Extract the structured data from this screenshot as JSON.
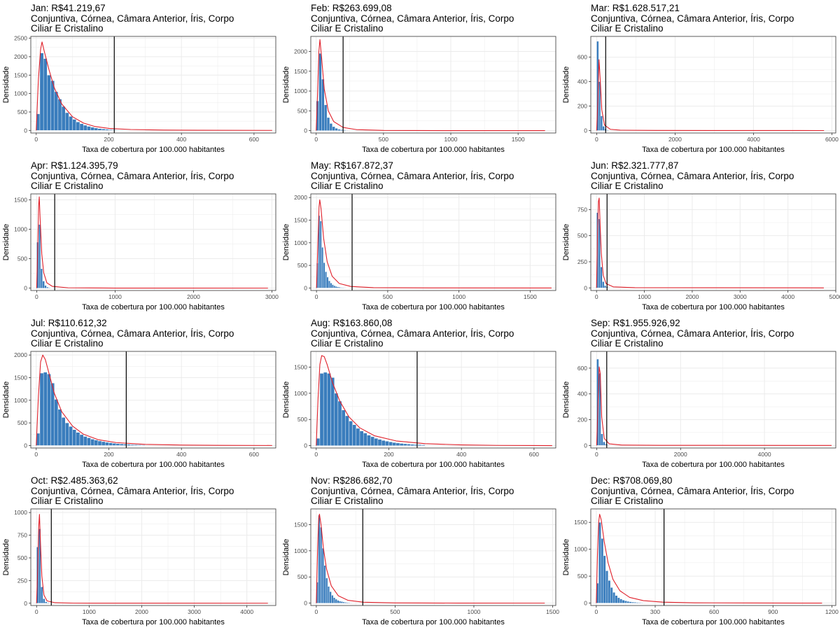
{
  "figure": {
    "subtitle_line1": "Conjuntiva, Córnea, Câmara Anterior, Íris, Corpo",
    "subtitle_line2": "Ciliar E Cristalino",
    "xlabel": "Taxa de cobertura por 100.000 habitantes",
    "ylabel": "Densidade",
    "colors": {
      "bar": "#3a7dbd",
      "bar_edge": "#ffffff",
      "density": "#e0202a",
      "reference_line": "#000000",
      "grid": "#ebebeb",
      "panel_border": "#333333"
    }
  },
  "chart_data": [
    {
      "type": "bar",
      "title": "Jan: R$41.219,67",
      "xlabel": "Taxa de cobertura por 100.000 habitantes",
      "ylabel": "Densidade",
      "xlim": [
        -15,
        660
      ],
      "ylim": [
        -70,
        2550
      ],
      "xticks": [
        0,
        200,
        400,
        600
      ],
      "yticks": [
        0,
        500,
        1000,
        1500,
        2000,
        2500
      ],
      "bin_width": 10,
      "bin_start": 0,
      "values": [
        450,
        2100,
        1950,
        1500,
        1350,
        1050,
        850,
        650,
        480,
        380,
        300,
        230,
        180,
        140,
        110,
        85,
        65,
        50,
        40,
        30,
        22,
        16,
        12,
        10,
        8,
        7,
        6,
        5,
        4,
        4
      ],
      "density": [
        [
          0,
          0
        ],
        [
          6,
          1400
        ],
        [
          12,
          2200
        ],
        [
          16,
          2400
        ],
        [
          22,
          2150
        ],
        [
          35,
          1650
        ],
        [
          50,
          1150
        ],
        [
          70,
          720
        ],
        [
          100,
          370
        ],
        [
          130,
          200
        ],
        [
          160,
          110
        ],
        [
          200,
          55
        ],
        [
          260,
          25
        ],
        [
          350,
          10
        ],
        [
          450,
          4
        ],
        [
          650,
          1
        ]
      ],
      "reference_line": 215
    },
    {
      "type": "bar",
      "title": "Feb: R$263.699,08",
      "xlabel": "Taxa de cobertura por 100.000 habitantes",
      "ylabel": "Densidade",
      "xlim": [
        -40,
        1780
      ],
      "ylim": [
        -60,
        2380
      ],
      "xticks": [
        0,
        500,
        1000,
        1500
      ],
      "yticks": [
        0,
        500,
        1000,
        1500,
        2000
      ],
      "bin_width": 20,
      "bin_start": 0,
      "values": [
        750,
        1950,
        1300,
        650,
        330,
        180,
        100,
        60,
        35,
        22,
        14,
        9,
        6,
        4,
        3
      ],
      "density": [
        [
          0,
          0
        ],
        [
          10,
          900
        ],
        [
          20,
          2000
        ],
        [
          28,
          2300
        ],
        [
          40,
          1850
        ],
        [
          60,
          1050
        ],
        [
          90,
          500
        ],
        [
          130,
          230
        ],
        [
          200,
          80
        ],
        [
          300,
          25
        ],
        [
          500,
          6
        ],
        [
          1000,
          1
        ],
        [
          1700,
          0
        ]
      ],
      "reference_line": 200
    },
    {
      "type": "bar",
      "title": "Mar: R$1.628.517,21",
      "xlabel": "Taxa de cobertura por 100.000 habitantes",
      "ylabel": "Densidade",
      "xlim": [
        -150,
        6100
      ],
      "ylim": [
        -20,
        770
      ],
      "xticks": [
        0,
        2000,
        4000,
        6000
      ],
      "yticks": [
        0,
        200,
        400,
        600
      ],
      "bin_width": 50,
      "bin_start": 0,
      "values": [
        730,
        400,
        120,
        35,
        12,
        5
      ],
      "density": [
        [
          0,
          0
        ],
        [
          30,
          250
        ],
        [
          60,
          580
        ],
        [
          90,
          420
        ],
        [
          130,
          170
        ],
        [
          200,
          45
        ],
        [
          350,
          10
        ],
        [
          600,
          3
        ],
        [
          1500,
          1
        ],
        [
          5800,
          0
        ]
      ],
      "reference_line": 230
    },
    {
      "type": "bar",
      "title": "Apr: R$1.124.395,79",
      "xlabel": "Taxa de cobertura por 100.000 habitantes",
      "ylabel": "Densidade",
      "xlim": [
        -75,
        3050
      ],
      "ylim": [
        -40,
        1600
      ],
      "xticks": [
        0,
        1000,
        2000,
        3000
      ],
      "yticks": [
        0,
        500,
        1000,
        1500
      ],
      "bin_width": 25,
      "bin_start": 0,
      "values": [
        780,
        1080,
        330,
        120,
        45,
        18,
        8,
        4
      ],
      "density": [
        [
          0,
          0
        ],
        [
          12,
          600
        ],
        [
          25,
          1400
        ],
        [
          33,
          1550
        ],
        [
          45,
          1150
        ],
        [
          65,
          580
        ],
        [
          90,
          260
        ],
        [
          130,
          90
        ],
        [
          200,
          30
        ],
        [
          400,
          6
        ],
        [
          1000,
          1
        ],
        [
          2950,
          0
        ]
      ],
      "reference_line": 230
    },
    {
      "type": "bar",
      "title": "May: R$167.872,37",
      "xlabel": "Taxa de cobertura por 100.000 habitantes",
      "ylabel": "Densidade",
      "xlim": [
        -40,
        1680
      ],
      "ylim": [
        -55,
        2080
      ],
      "xticks": [
        0,
        500,
        1000,
        1500
      ],
      "yticks": [
        0,
        500,
        1000,
        1500,
        2000
      ],
      "bin_width": 12,
      "bin_start": 0,
      "values": [
        550,
        1600,
        1480,
        900,
        560,
        360,
        240,
        160,
        110,
        75,
        52,
        36,
        25,
        18,
        13,
        10,
        8,
        6,
        5,
        4
      ],
      "density": [
        [
          0,
          0
        ],
        [
          10,
          1000
        ],
        [
          18,
          1800
        ],
        [
          23,
          1950
        ],
        [
          32,
          1750
        ],
        [
          50,
          1100
        ],
        [
          75,
          580
        ],
        [
          110,
          260
        ],
        [
          160,
          100
        ],
        [
          240,
          35
        ],
        [
          400,
          8
        ],
        [
          800,
          2
        ],
        [
          1650,
          0
        ]
      ],
      "reference_line": 250
    },
    {
      "type": "bar",
      "title": "Jun: R$2.321.777,87",
      "xlabel": "Taxa de cobertura por 100.000 habitantes",
      "ylabel": "Densidade",
      "xlim": [
        -120,
        5000
      ],
      "ylim": [
        -25,
        900
      ],
      "xticks": [
        0,
        1000,
        2000,
        3000,
        4000,
        5000
      ],
      "yticks": [
        0,
        250,
        500,
        750
      ],
      "bin_width": 40,
      "bin_start": 0,
      "values": [
        720,
        660,
        200,
        60,
        22,
        9,
        4
      ],
      "density": [
        [
          0,
          0
        ],
        [
          20,
          500
        ],
        [
          40,
          830
        ],
        [
          55,
          860
        ],
        [
          75,
          600
        ],
        [
          100,
          330
        ],
        [
          140,
          120
        ],
        [
          200,
          40
        ],
        [
          350,
          10
        ],
        [
          800,
          2
        ],
        [
          4750,
          0
        ]
      ],
      "reference_line": 220
    },
    {
      "type": "bar",
      "title": "Jul: R$110.612,32",
      "xlabel": "Taxa de cobertura por 100.000 habitantes",
      "ylabel": "Densidade",
      "xlim": [
        -15,
        660
      ],
      "ylim": [
        -55,
        2080
      ],
      "xticks": [
        0,
        200,
        400,
        600
      ],
      "yticks": [
        0,
        500,
        1000,
        1500,
        2000
      ],
      "bin_width": 10,
      "bin_start": 0,
      "values": [
        270,
        1600,
        1620,
        1580,
        1380,
        1020,
        800,
        620,
        500,
        420,
        350,
        290,
        240,
        200,
        170,
        140,
        120,
        100,
        85,
        70,
        60,
        50,
        42,
        36,
        30,
        25,
        21,
        18,
        15,
        13
      ],
      "density": [
        [
          0,
          0
        ],
        [
          6,
          1100
        ],
        [
          12,
          1850
        ],
        [
          18,
          2000
        ],
        [
          25,
          1900
        ],
        [
          35,
          1600
        ],
        [
          50,
          1150
        ],
        [
          70,
          750
        ],
        [
          100,
          430
        ],
        [
          130,
          250
        ],
        [
          170,
          130
        ],
        [
          220,
          65
        ],
        [
          300,
          25
        ],
        [
          400,
          10
        ],
        [
          500,
          4
        ],
        [
          650,
          1
        ]
      ],
      "reference_line": 248
    },
    {
      "type": "bar",
      "title": "Aug: R$163.860,08",
      "xlabel": "Taxa de cobertura por 100.000 habitantes",
      "ylabel": "Densidade",
      "xlim": [
        -15,
        660
      ],
      "ylim": [
        -45,
        1800
      ],
      "xticks": [
        0,
        200,
        400,
        600
      ],
      "yticks": [
        0,
        500,
        1000,
        1500
      ],
      "bin_width": 10,
      "bin_start": 0,
      "values": [
        140,
        1380,
        1400,
        1380,
        1300,
        1000,
        850,
        680,
        570,
        470,
        400,
        330,
        280,
        240,
        200,
        170,
        140,
        120,
        100,
        85,
        72,
        60,
        50,
        42,
        36,
        30,
        25,
        21,
        18,
        15
      ],
      "density": [
        [
          0,
          0
        ],
        [
          5,
          900
        ],
        [
          10,
          1550
        ],
        [
          15,
          1720
        ],
        [
          22,
          1700
        ],
        [
          30,
          1550
        ],
        [
          45,
          1200
        ],
        [
          65,
          850
        ],
        [
          90,
          550
        ],
        [
          120,
          340
        ],
        [
          160,
          190
        ],
        [
          220,
          90
        ],
        [
          300,
          38
        ],
        [
          400,
          14
        ],
        [
          500,
          5
        ],
        [
          650,
          1
        ]
      ],
      "reference_line": 278
    },
    {
      "type": "bar",
      "title": "Sep: R$1.955.926,92",
      "xlabel": "Taxa de cobertura por 100.000 habitantes",
      "ylabel": "Densidade",
      "xlim": [
        -140,
        5700
      ],
      "ylim": [
        -20,
        730
      ],
      "xticks": [
        0,
        2000,
        4000
      ],
      "yticks": [
        0,
        200,
        400,
        600
      ],
      "bin_width": 50,
      "bin_start": 0,
      "values": [
        670,
        560,
        90,
        28,
        10,
        4
      ],
      "density": [
        [
          0,
          0
        ],
        [
          30,
          300
        ],
        [
          60,
          610
        ],
        [
          85,
          560
        ],
        [
          120,
          220
        ],
        [
          180,
          55
        ],
        [
          300,
          12
        ],
        [
          600,
          3
        ],
        [
          1500,
          1
        ],
        [
          5600,
          0
        ]
      ],
      "reference_line": 240
    },
    {
      "type": "bar",
      "title": "Oct: R$2.485.363,62",
      "xlabel": "Taxa de cobertura por 100.000 habitantes",
      "ylabel": "Densidade",
      "xlim": [
        -110,
        4550
      ],
      "ylim": [
        -25,
        1040
      ],
      "xticks": [
        0,
        1000,
        2000,
        3000,
        4000
      ],
      "yticks": [
        0,
        250,
        500,
        750,
        1000
      ],
      "bin_width": 40,
      "bin_start": 0,
      "values": [
        620,
        820,
        180,
        50,
        16,
        6
      ],
      "density": [
        [
          0,
          0
        ],
        [
          20,
          350
        ],
        [
          40,
          840
        ],
        [
          55,
          980
        ],
        [
          75,
          650
        ],
        [
          100,
          300
        ],
        [
          140,
          90
        ],
        [
          200,
          25
        ],
        [
          350,
          6
        ],
        [
          700,
          1
        ],
        [
          4400,
          0
        ]
      ],
      "reference_line": 280
    },
    {
      "type": "bar",
      "title": "Nov: R$286.682,70",
      "xlabel": "Taxa de cobertura por 100.000 habitantes",
      "ylabel": "Densidade",
      "xlim": [
        -35,
        1520
      ],
      "ylim": [
        -45,
        1800
      ],
      "xticks": [
        0,
        500,
        1000,
        1500
      ],
      "yticks": [
        0,
        500,
        1000,
        1500
      ],
      "bin_width": 12,
      "bin_start": 0,
      "values": [
        400,
        1680,
        1450,
        1050,
        720,
        480,
        320,
        220,
        150,
        105,
        75,
        54,
        40,
        30,
        22,
        16,
        12,
        9,
        7,
        5
      ],
      "density": [
        [
          0,
          0
        ],
        [
          8,
          1000
        ],
        [
          15,
          1620
        ],
        [
          20,
          1700
        ],
        [
          30,
          1500
        ],
        [
          45,
          1050
        ],
        [
          65,
          650
        ],
        [
          95,
          330
        ],
        [
          140,
          140
        ],
        [
          200,
          55
        ],
        [
          300,
          18
        ],
        [
          500,
          4
        ],
        [
          900,
          1
        ],
        [
          1450,
          0
        ]
      ],
      "reference_line": 295
    },
    {
      "type": "bar",
      "title": "Dec: R$708.069,80",
      "xlabel": "Taxa de cobertura por 100.000 habitantes",
      "ylabel": "Densidade",
      "xlim": [
        -28,
        1220
      ],
      "ylim": [
        -45,
        1750
      ],
      "xticks": [
        0,
        300,
        600,
        900,
        1200
      ],
      "yticks": [
        0,
        500,
        1000,
        1500
      ],
      "bin_width": 12,
      "bin_start": 0,
      "values": [
        370,
        1500,
        1200,
        880,
        600,
        420,
        290,
        200,
        140,
        100,
        75,
        55,
        42,
        32,
        25,
        19,
        15,
        12,
        9,
        7,
        6,
        5,
        4,
        3
      ],
      "density": [
        [
          0,
          0
        ],
        [
          6,
          900
        ],
        [
          12,
          1500
        ],
        [
          17,
          1650
        ],
        [
          25,
          1550
        ],
        [
          40,
          1150
        ],
        [
          60,
          750
        ],
        [
          85,
          440
        ],
        [
          120,
          230
        ],
        [
          170,
          105
        ],
        [
          240,
          45
        ],
        [
          340,
          17
        ],
        [
          500,
          5
        ],
        [
          800,
          1
        ],
        [
          1150,
          0
        ]
      ],
      "reference_line": 345
    }
  ]
}
